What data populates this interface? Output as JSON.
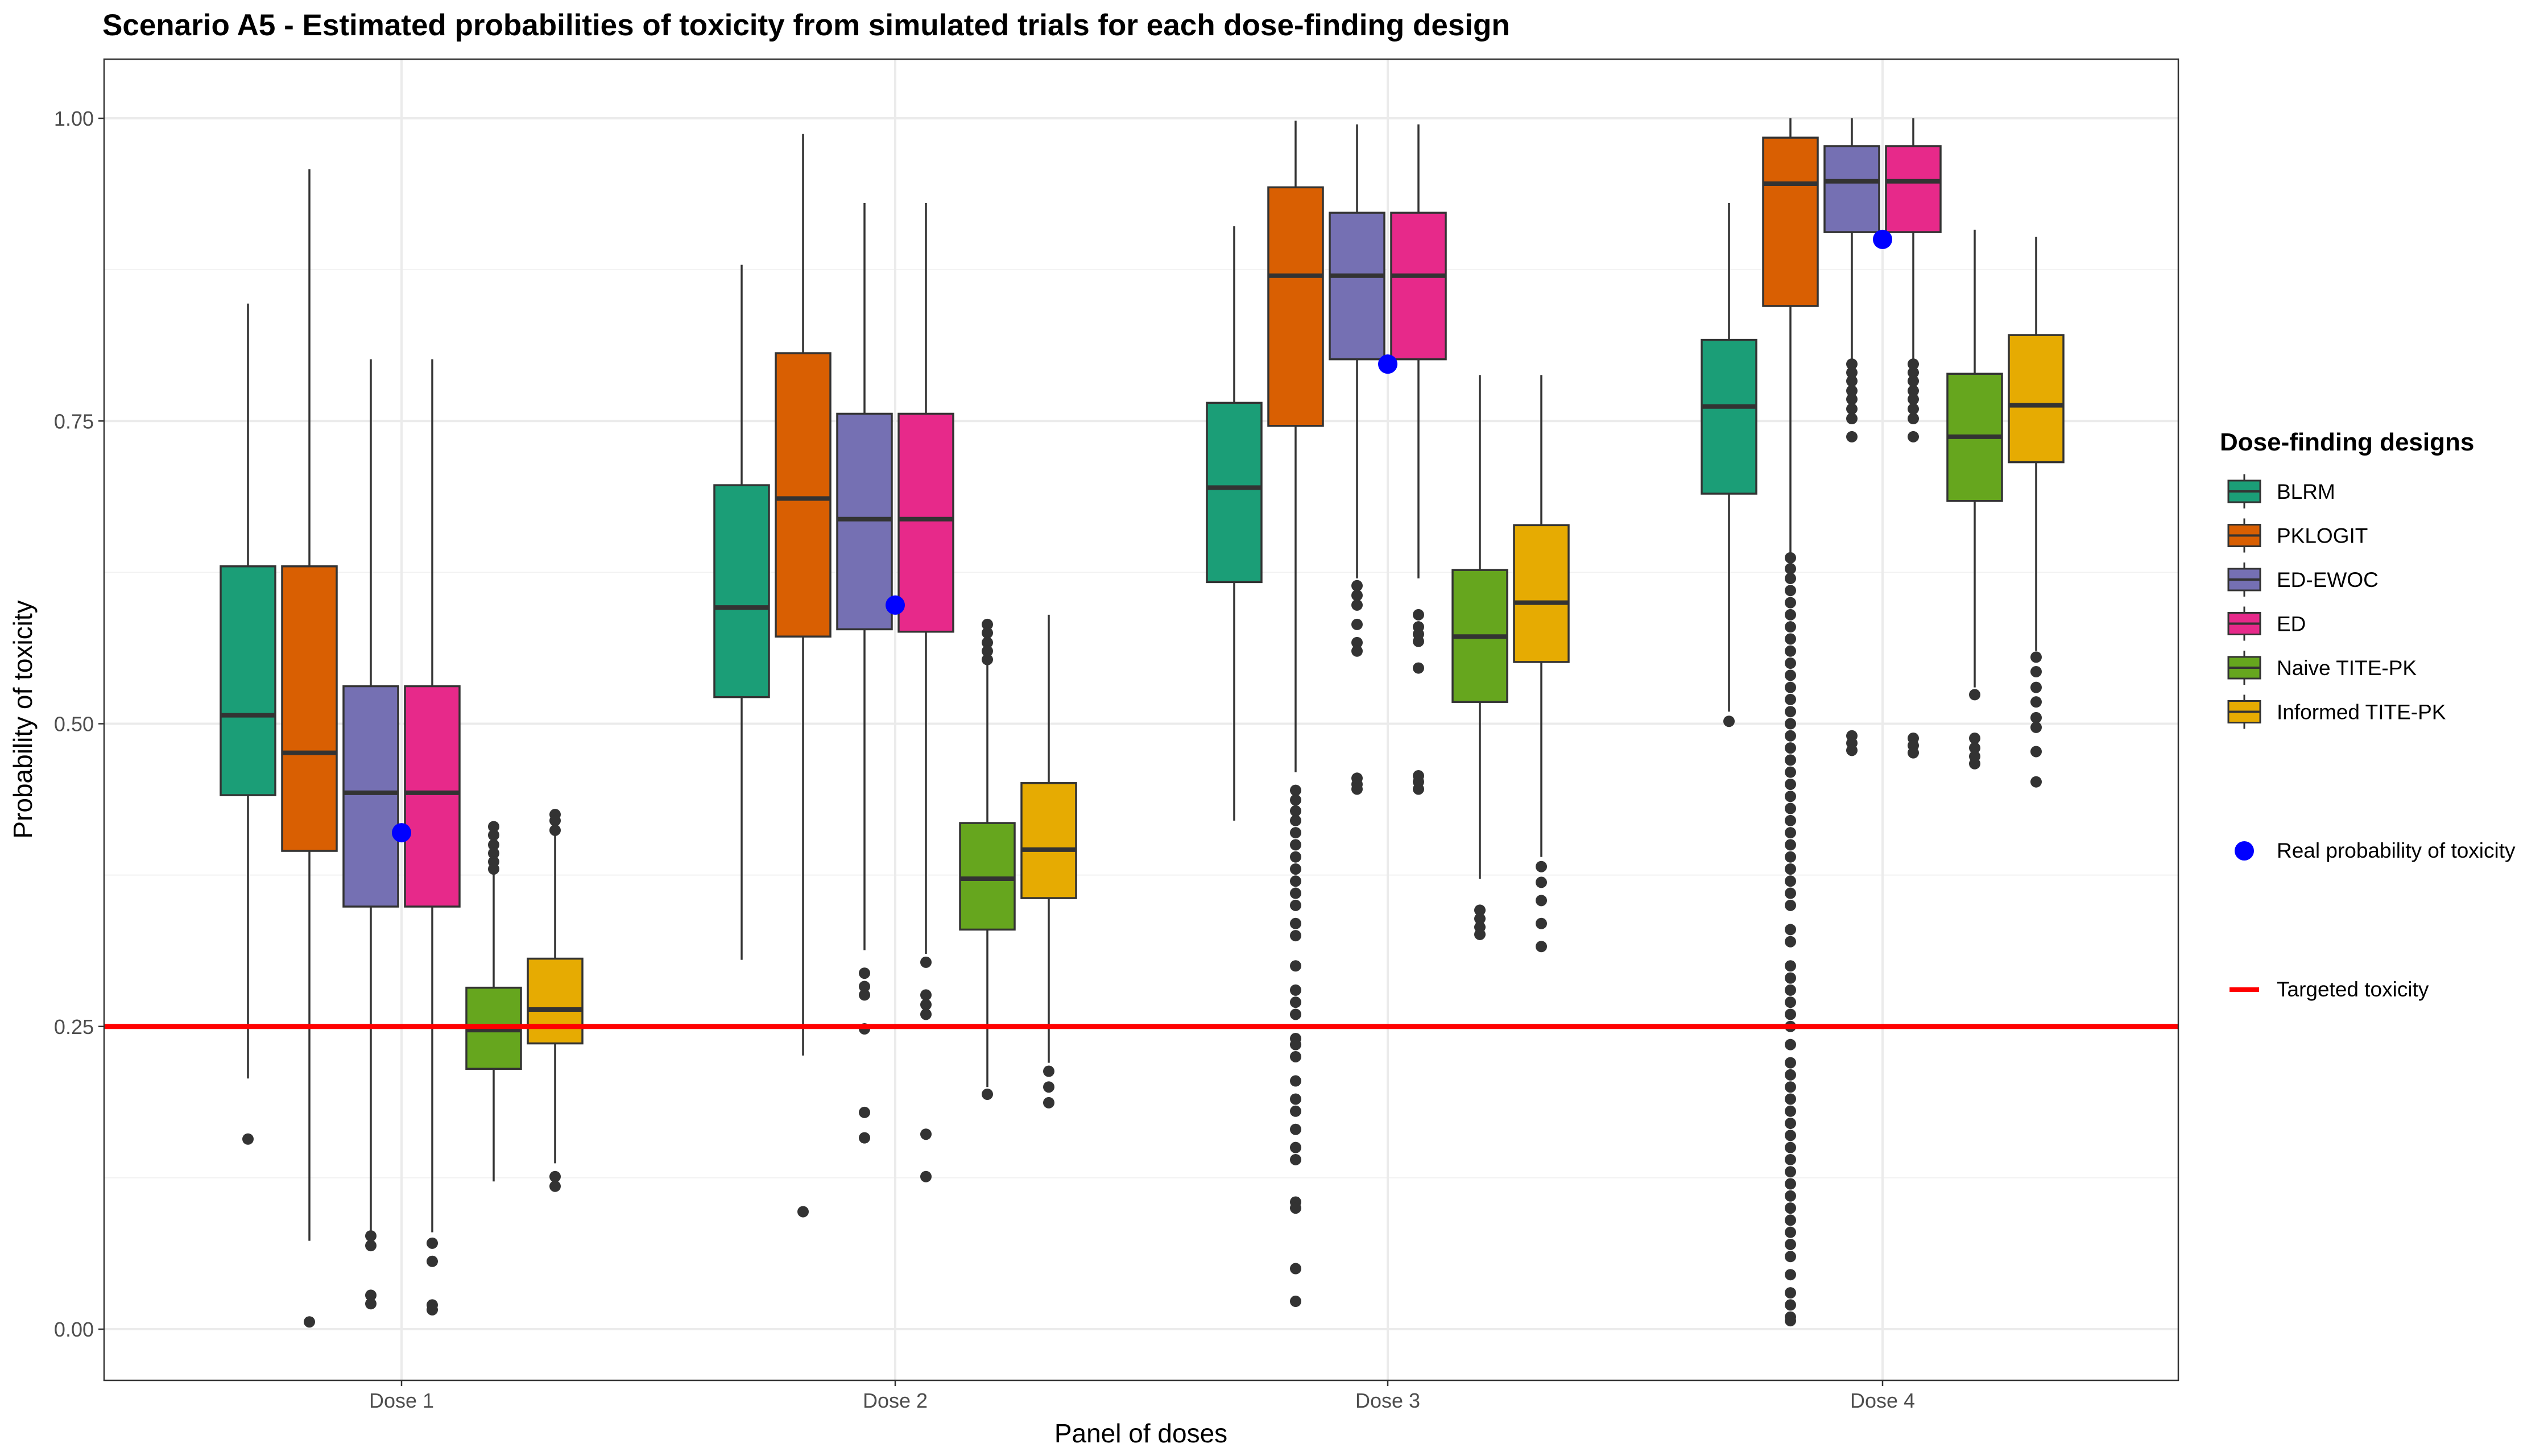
{
  "chart_data": {
    "type": "boxplot",
    "title": "Scenario A5 - Estimated probabilities of toxicity from simulated trials for each dose-finding design",
    "xlabel": "Panel of doses",
    "ylabel": "Probability of toxicity",
    "ylim": [
      -0.045,
      1.05
    ],
    "yticks": [
      0.0,
      0.25,
      0.5,
      0.75,
      1.0
    ],
    "ytick_labels": [
      "0.00",
      "0.25",
      "0.50",
      "0.75",
      "1.00"
    ],
    "grid": true,
    "categories": [
      "Dose 1",
      "Dose 2",
      "Dose 3",
      "Dose 4"
    ],
    "legend": {
      "title": "Dose-finding designs",
      "position": "right",
      "real_label": "Real probability of toxicity",
      "target_label": "Targeted toxicity"
    },
    "target_toxicity": 0.25,
    "target_color": "#ff0000",
    "real_color": "#0000ff",
    "real_probability": [
      0.41,
      0.598,
      0.797,
      0.9
    ],
    "series": [
      {
        "name": "BLRM",
        "color": "#1b9e77",
        "boxes": [
          {
            "q1": 0.441,
            "median": 0.507,
            "q3": 0.63,
            "lo": 0.207,
            "hi": 0.847,
            "outliers": [
              0.157
            ]
          },
          {
            "q1": 0.522,
            "median": 0.596,
            "q3": 0.697,
            "lo": 0.305,
            "hi": 0.879,
            "outliers": []
          },
          {
            "q1": 0.617,
            "median": 0.695,
            "q3": 0.765,
            "lo": 0.42,
            "hi": 0.911,
            "outliers": []
          },
          {
            "q1": 0.69,
            "median": 0.762,
            "q3": 0.817,
            "lo": 0.51,
            "hi": 0.93,
            "outliers": [
              0.502
            ]
          }
        ]
      },
      {
        "name": "PKLOGIT",
        "color": "#d95f02",
        "boxes": [
          {
            "q1": 0.395,
            "median": 0.476,
            "q3": 0.63,
            "lo": 0.073,
            "hi": 0.958,
            "outliers": [
              0.006
            ]
          },
          {
            "q1": 0.572,
            "median": 0.686,
            "q3": 0.806,
            "lo": 0.226,
            "hi": 0.987,
            "outliers": [
              0.097
            ]
          },
          {
            "q1": 0.746,
            "median": 0.87,
            "q3": 0.943,
            "lo": 0.46,
            "hi": 0.998,
            "outliers": [
              0.445,
              0.437,
              0.428,
              0.42,
              0.41,
              0.4,
              0.39,
              0.38,
              0.37,
              0.36,
              0.35,
              0.335,
              0.325,
              0.3,
              0.28,
              0.27,
              0.26,
              0.24,
              0.235,
              0.225,
              0.205,
              0.19,
              0.18,
              0.165,
              0.15,
              0.14,
              0.105,
              0.1,
              0.05,
              0.023
            ]
          },
          {
            "q1": 0.845,
            "median": 0.946,
            "q3": 0.984,
            "lo": 0.64,
            "hi": 1.0,
            "outliers": [
              0.637,
              0.628,
              0.62,
              0.61,
              0.6,
              0.59,
              0.58,
              0.57,
              0.56,
              0.55,
              0.54,
              0.53,
              0.52,
              0.51,
              0.5,
              0.49,
              0.48,
              0.47,
              0.46,
              0.45,
              0.44,
              0.43,
              0.42,
              0.41,
              0.4,
              0.39,
              0.38,
              0.37,
              0.36,
              0.35,
              0.33,
              0.32,
              0.3,
              0.29,
              0.28,
              0.27,
              0.26,
              0.25,
              0.235,
              0.22,
              0.21,
              0.2,
              0.19,
              0.18,
              0.17,
              0.16,
              0.15,
              0.14,
              0.13,
              0.12,
              0.11,
              0.1,
              0.09,
              0.08,
              0.07,
              0.06,
              0.045,
              0.03,
              0.02,
              0.01,
              0.007
            ]
          }
        ]
      },
      {
        "name": "ED-EWOC",
        "color": "#7570b3",
        "boxes": [
          {
            "q1": 0.349,
            "median": 0.443,
            "q3": 0.531,
            "lo": 0.08,
            "hi": 0.801,
            "outliers": [
              0.077,
              0.069,
              0.028,
              0.021
            ]
          },
          {
            "q1": 0.578,
            "median": 0.669,
            "q3": 0.756,
            "lo": 0.313,
            "hi": 0.93,
            "outliers": [
              0.294,
              0.283,
              0.276,
              0.248,
              0.179,
              0.158
            ]
          },
          {
            "q1": 0.801,
            "median": 0.87,
            "q3": 0.922,
            "lo": 0.62,
            "hi": 0.995,
            "outliers": [
              0.614,
              0.606,
              0.598,
              0.582,
              0.567,
              0.56,
              0.455,
              0.45,
              0.446
            ]
          },
          {
            "q1": 0.906,
            "median": 0.948,
            "q3": 0.977,
            "lo": 0.8,
            "hi": 1.0,
            "outliers": [
              0.797,
              0.79,
              0.783,
              0.775,
              0.768,
              0.76,
              0.752,
              0.737,
              0.49,
              0.484,
              0.478
            ]
          }
        ]
      },
      {
        "name": "ED",
        "color": "#e7298a",
        "boxes": [
          {
            "q1": 0.349,
            "median": 0.443,
            "q3": 0.531,
            "lo": 0.08,
            "hi": 0.801,
            "outliers": [
              0.071,
              0.056,
              0.02,
              0.016
            ]
          },
          {
            "q1": 0.576,
            "median": 0.669,
            "q3": 0.756,
            "lo": 0.31,
            "hi": 0.93,
            "outliers": [
              0.303,
              0.276,
              0.268,
              0.26,
              0.161,
              0.126
            ]
          },
          {
            "q1": 0.801,
            "median": 0.87,
            "q3": 0.922,
            "lo": 0.62,
            "hi": 0.995,
            "outliers": [
              0.59,
              0.58,
              0.574,
              0.568,
              0.546,
              0.457,
              0.452,
              0.446
            ]
          },
          {
            "q1": 0.906,
            "median": 0.948,
            "q3": 0.977,
            "lo": 0.8,
            "hi": 1.0,
            "outliers": [
              0.797,
              0.79,
              0.783,
              0.775,
              0.768,
              0.76,
              0.752,
              0.737,
              0.488,
              0.482,
              0.476
            ]
          }
        ]
      },
      {
        "name": "Naive TITE-PK",
        "color": "#66a61e",
        "boxes": [
          {
            "q1": 0.215,
            "median": 0.247,
            "q3": 0.282,
            "lo": 0.122,
            "hi": 0.38,
            "outliers": [
              0.415,
              0.408,
              0.4,
              0.393,
              0.386,
              0.38
            ]
          },
          {
            "q1": 0.33,
            "median": 0.372,
            "q3": 0.418,
            "lo": 0.2,
            "hi": 0.555,
            "outliers": [
              0.582,
              0.575,
              0.567,
              0.56,
              0.553,
              0.194
            ]
          },
          {
            "q1": 0.518,
            "median": 0.572,
            "q3": 0.627,
            "lo": 0.372,
            "hi": 0.788,
            "outliers": [
              0.346,
              0.339,
              0.332,
              0.326
            ]
          },
          {
            "q1": 0.684,
            "median": 0.737,
            "q3": 0.789,
            "lo": 0.53,
            "hi": 0.908,
            "outliers": [
              0.524,
              0.488,
              0.48,
              0.473,
              0.467
            ]
          }
        ]
      },
      {
        "name": "Informed TITE-PK",
        "color": "#e6ab02",
        "boxes": [
          {
            "q1": 0.236,
            "median": 0.264,
            "q3": 0.306,
            "lo": 0.137,
            "hi": 0.408,
            "outliers": [
              0.425,
              0.42,
              0.412,
              0.126,
              0.118
            ]
          },
          {
            "q1": 0.356,
            "median": 0.396,
            "q3": 0.451,
            "lo": 0.22,
            "hi": 0.59,
            "outliers": [
              0.213,
              0.2,
              0.187
            ]
          },
          {
            "q1": 0.551,
            "median": 0.6,
            "q3": 0.664,
            "lo": 0.39,
            "hi": 0.788,
            "outliers": [
              0.382,
              0.369,
              0.354,
              0.335,
              0.316
            ]
          },
          {
            "q1": 0.716,
            "median": 0.763,
            "q3": 0.821,
            "lo": 0.56,
            "hi": 0.902,
            "outliers": [
              0.555,
              0.543,
              0.53,
              0.518,
              0.505,
              0.497,
              0.477,
              0.452
            ]
          }
        ]
      }
    ]
  }
}
